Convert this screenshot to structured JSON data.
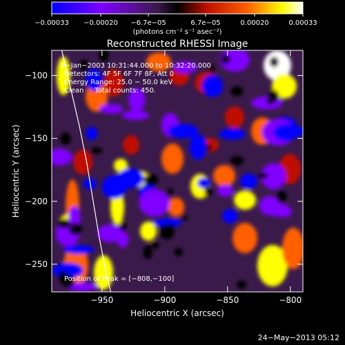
{
  "chart_data": {
    "type": "heatmap",
    "title": "Reconstructed RHESSI Image",
    "xlabel": "Heliocentric X (arcsec)",
    "ylabel": "Heliocentric Y (arcsec)",
    "xlim": [
      -990,
      -790
    ],
    "ylim": [
      -272,
      -80
    ],
    "x_ticks": [
      -950,
      -900,
      -850,
      -800
    ],
    "x_tick_labels": [
      "−950",
      "−900",
      "−850",
      "−800"
    ],
    "y_ticks": [
      -100,
      -150,
      -200,
      -250
    ],
    "y_tick_labels": [
      "−100",
      "−150",
      "−200",
      "−250"
    ],
    "colorbar": {
      "range": [
        -0.00033,
        0.00033
      ],
      "tick_labels": [
        "−0.00033",
        "−0.00020",
        "−6.7e−05",
        "6.7e−05",
        "0.00020",
        "0.00033"
      ],
      "unit_label": "(photons cm⁻² s⁻¹ asec⁻²)",
      "colors": [
        "#0000ff",
        "#8000ff",
        "#3a1a4a",
        "#000000",
        "#c01000",
        "#ff6000",
        "#ffff00",
        "#ffffff"
      ]
    },
    "annotations": [
      "9−Jan−2003 10:31:44.000 to 10:32:20.000",
      "Detectors: 4F 5F 6F 7F 8F, Att 0",
      "Energy Range: 25.0 − 50.0 keV",
      "Clean     Total counts: 450.",
      "Position of Peak = [−808,−100]"
    ],
    "peak": {
      "x": -808,
      "y": -100
    },
    "limb": [
      [
        -982,
        -80
      ],
      [
        -975,
        -110
      ],
      [
        -968,
        -140
      ],
      [
        -962,
        -170
      ],
      [
        -957,
        -200
      ],
      [
        -952,
        -230
      ],
      [
        -946,
        -260
      ],
      [
        -943,
        -272
      ]
    ]
  },
  "footer": {
    "timestamp": "24−May−2013 05:12"
  }
}
